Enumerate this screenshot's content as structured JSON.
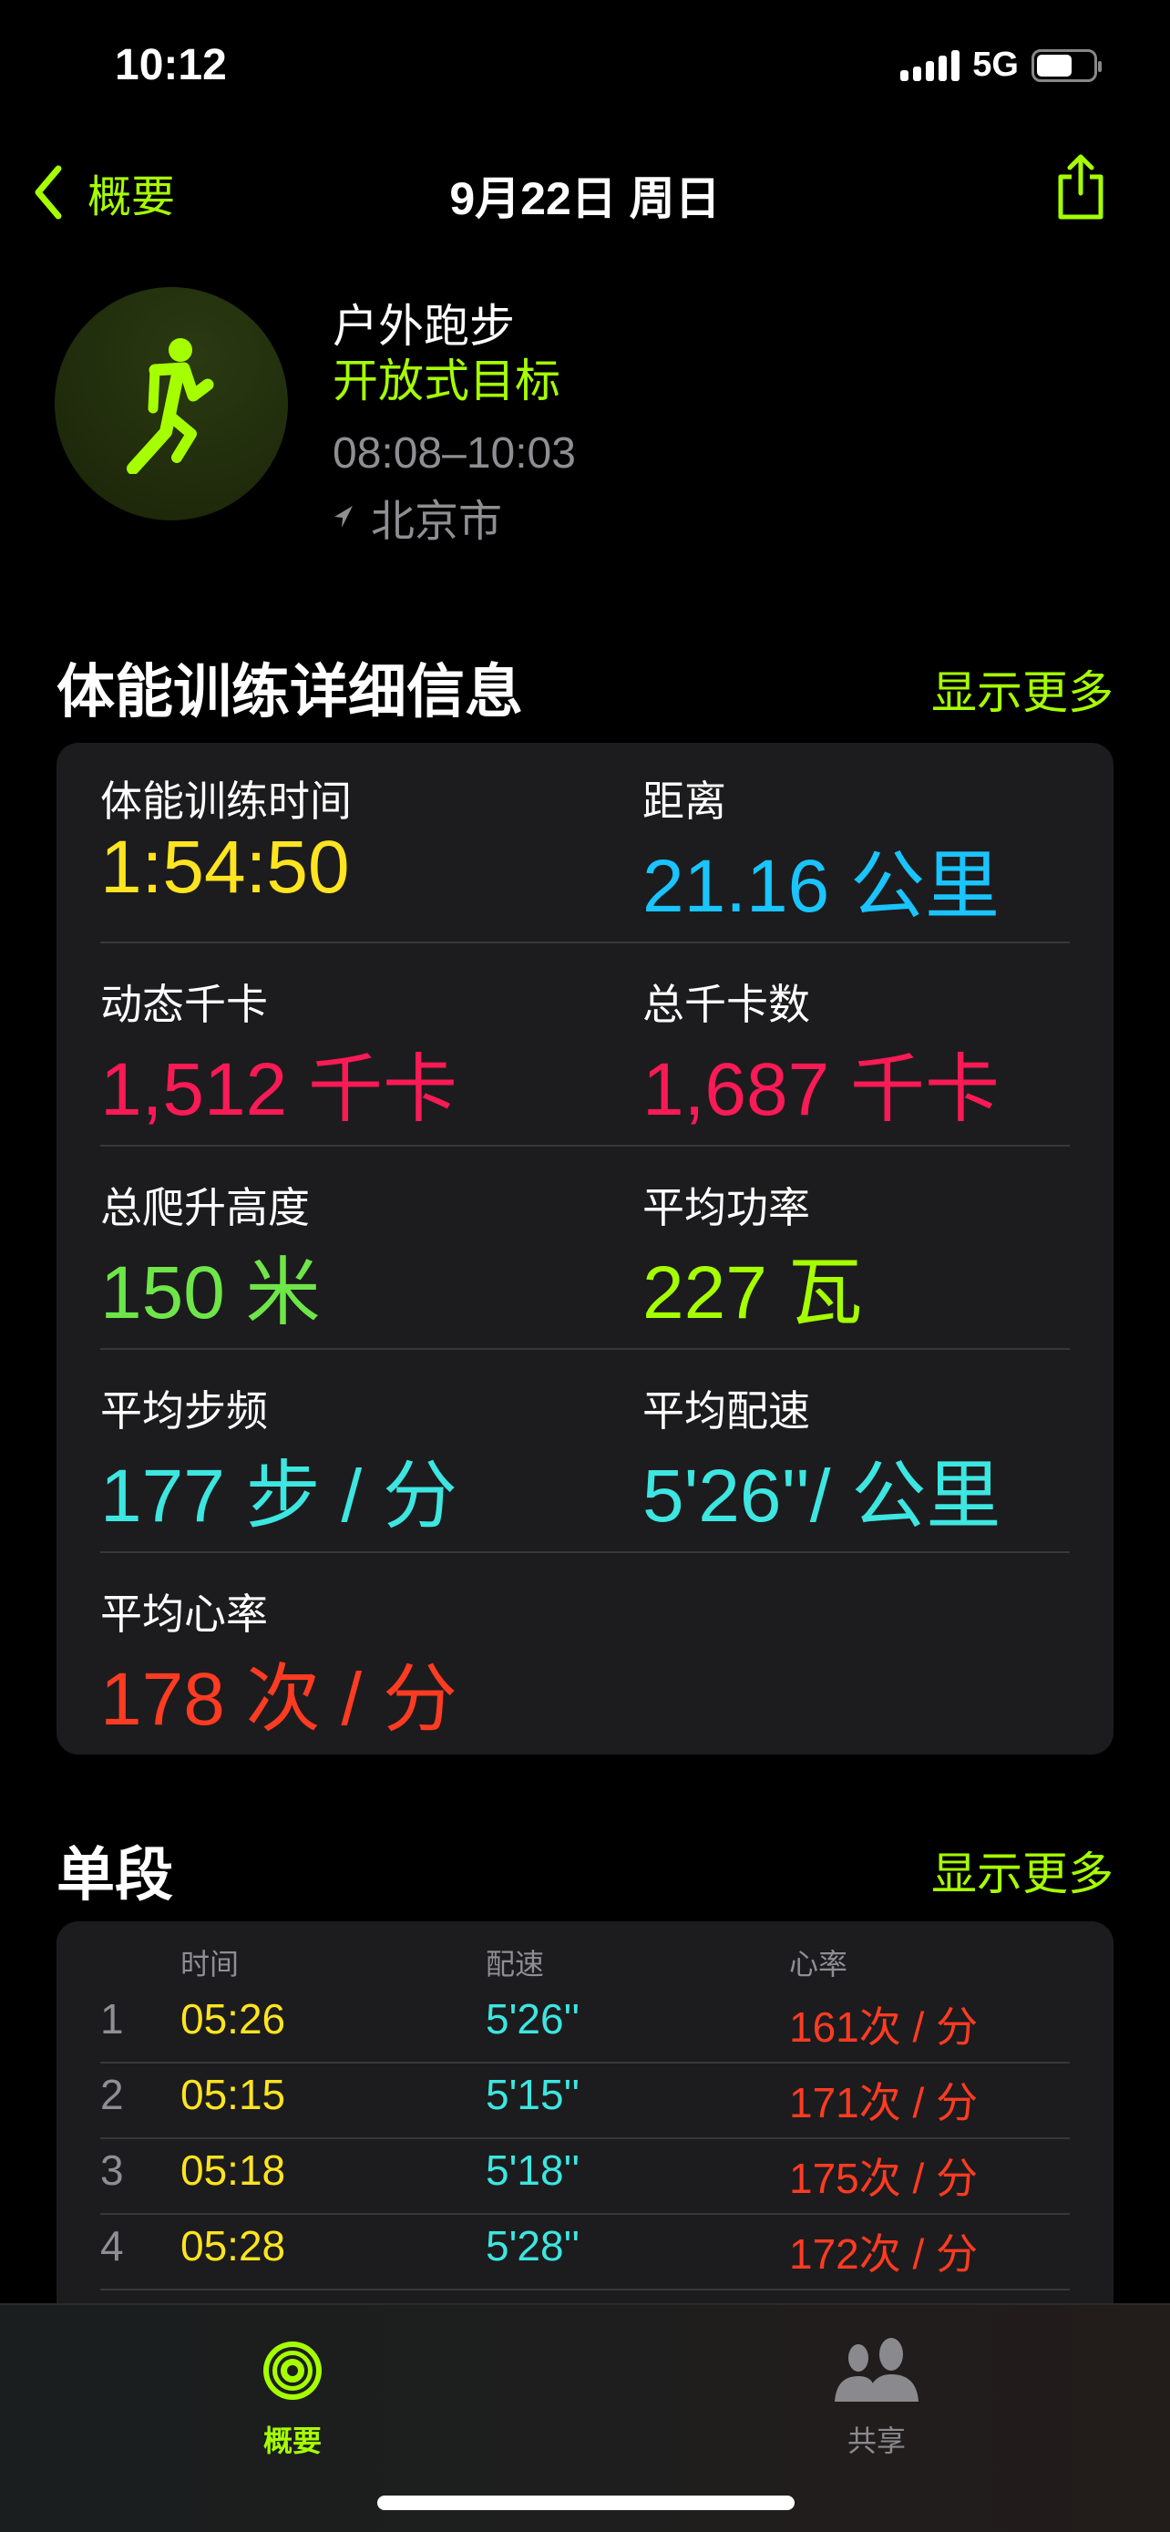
{
  "status": {
    "time": "10:12",
    "network": "5G"
  },
  "nav": {
    "back_label": "概要",
    "title": "9月22日 周日"
  },
  "workout": {
    "name": "户外跑步",
    "goal": "开放式目标",
    "time_range": "08:08–10:03",
    "location": "北京市"
  },
  "details": {
    "title": "体能训练详细信息",
    "more": "显示更多",
    "metrics": [
      {
        "label": "体能训练时间",
        "value": "1:54:50",
        "color": "#ffe41f"
      },
      {
        "label": "距离",
        "value": "21.16 公里",
        "color": "#19c4ff"
      },
      {
        "label": "动态千卡",
        "value": "1,512 千卡",
        "color": "#fa1a55"
      },
      {
        "label": "总千卡数",
        "value": "1,687 千卡",
        "color": "#fa1a55"
      },
      {
        "label": "总爬升高度",
        "value": "150 米",
        "color": "#6ee548"
      },
      {
        "label": "平均功率",
        "value": "227 瓦",
        "color": "#a6ff00"
      },
      {
        "label": "平均步频",
        "value": "177 步 / 分",
        "color": "#3de6e0"
      },
      {
        "label": "平均配速",
        "value": "5'26''/ 公里",
        "color": "#3de6e0"
      },
      {
        "label": "平均心率",
        "value": "178 次 / 分",
        "color": "#ff3b22"
      }
    ]
  },
  "splits": {
    "title": "单段",
    "more": "显示更多",
    "headers": [
      "时间",
      "配速",
      "心率"
    ],
    "rows": [
      {
        "n": "1",
        "time": "05:26",
        "pace": "5'26''",
        "hr": "161次 / 分"
      },
      {
        "n": "2",
        "time": "05:15",
        "pace": "5'15''",
        "hr": "171次 / 分"
      },
      {
        "n": "3",
        "time": "05:18",
        "pace": "5'18''",
        "hr": "175次 / 分"
      },
      {
        "n": "4",
        "time": "05:28",
        "pace": "5'28''",
        "hr": "172次 / 分"
      }
    ]
  },
  "tabs": [
    {
      "label": "概要",
      "active": true
    },
    {
      "label": "共享",
      "active": false
    }
  ],
  "colors": {
    "accent": "#a6ff00",
    "time": "#ffe41f",
    "pace": "#3de6e0",
    "hr": "#ff3b22"
  }
}
